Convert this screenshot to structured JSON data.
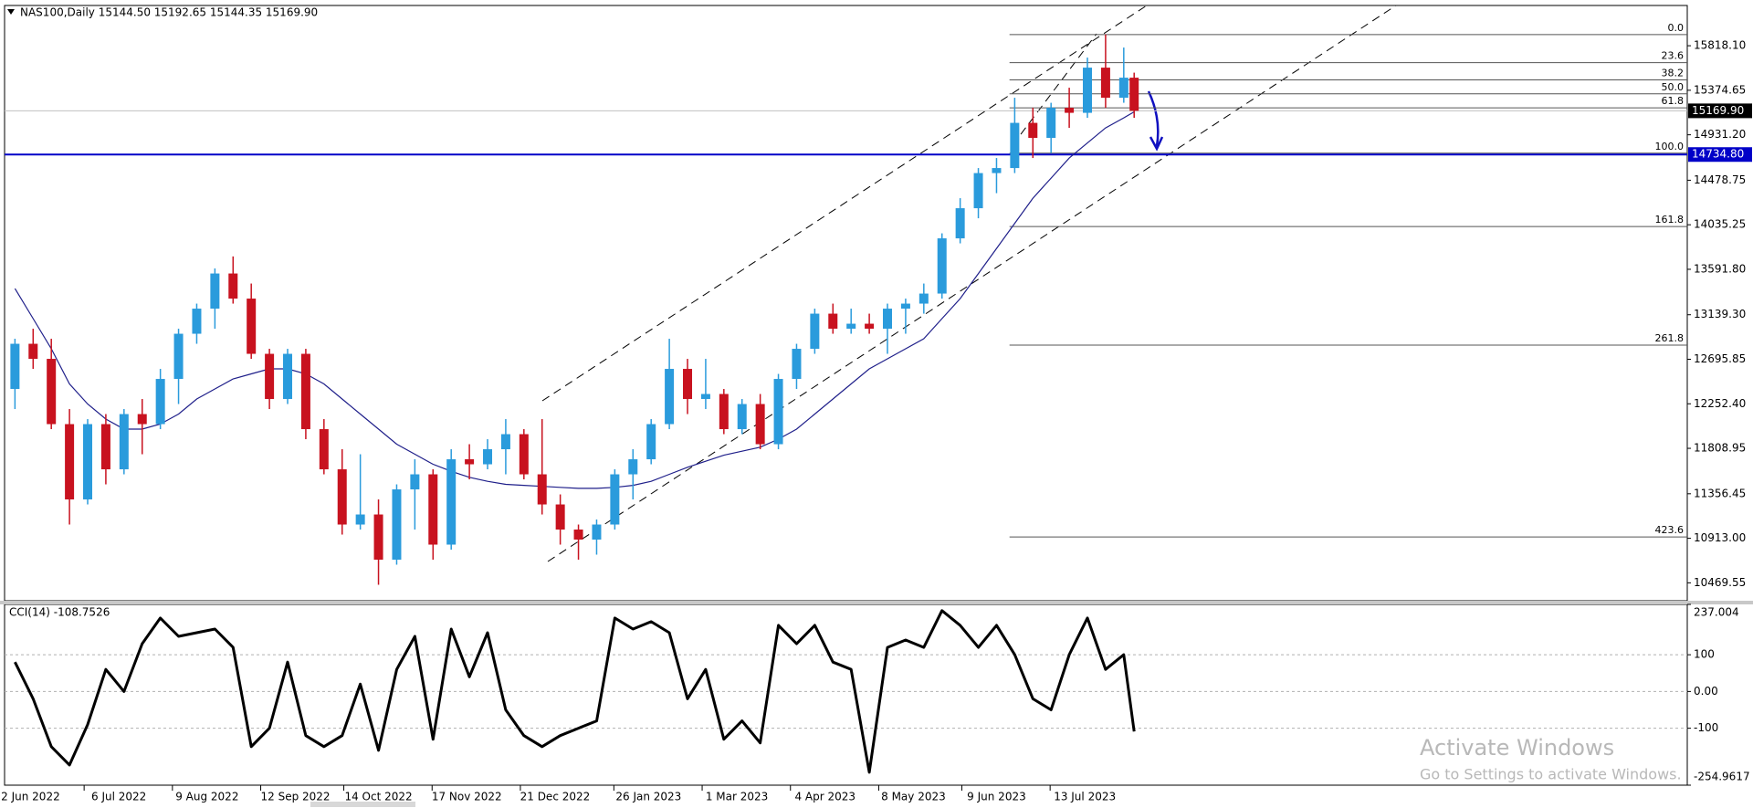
{
  "chart_data": [
    {
      "type": "candlestick",
      "title": "NAS100,Daily  15144.50 15192.65 15144.35 15169.90",
      "x": [
        "2022-05-27",
        "2022-06-03",
        "2022-06-10",
        "2022-06-17",
        "2022-06-24",
        "2022-07-01",
        "2022-07-08",
        "2022-07-15",
        "2022-07-22",
        "2022-07-29",
        "2022-08-05",
        "2022-08-12",
        "2022-08-19",
        "2022-08-26",
        "2022-09-02",
        "2022-09-09",
        "2022-09-16",
        "2022-09-23",
        "2022-09-30",
        "2022-10-07",
        "2022-10-14",
        "2022-10-21",
        "2022-10-28",
        "2022-11-04",
        "2022-11-11",
        "2022-11-18",
        "2022-11-25",
        "2022-12-02",
        "2022-12-09",
        "2022-12-16",
        "2022-12-23",
        "2022-12-30",
        "2023-01-06",
        "2023-01-13",
        "2023-01-20",
        "2023-01-27",
        "2023-02-03",
        "2023-02-10",
        "2023-02-17",
        "2023-02-24",
        "2023-03-03",
        "2023-03-10",
        "2023-03-17",
        "2023-03-24",
        "2023-03-31",
        "2023-04-07",
        "2023-04-14",
        "2023-04-21",
        "2023-04-28",
        "2023-05-05",
        "2023-05-12",
        "2023-05-19",
        "2023-05-26",
        "2023-06-02",
        "2023-06-09",
        "2023-06-16",
        "2023-06-23",
        "2023-06-30",
        "2023-07-07",
        "2023-07-14",
        "2023-07-21",
        "2023-07-28",
        "2023-08-01"
      ],
      "open": [
        12400,
        12850,
        12700,
        12050,
        11300,
        12050,
        11600,
        12150,
        12050,
        12500,
        12950,
        13200,
        13550,
        13300,
        12750,
        12300,
        12750,
        12000,
        11600,
        11050,
        11150,
        10700,
        11400,
        11550,
        10850,
        11700,
        11650,
        11800,
        11950,
        11550,
        11250,
        11000,
        10900,
        11050,
        11550,
        11700,
        12050,
        12600,
        12300,
        12350,
        12000,
        12250,
        11850,
        12500,
        12800,
        13150,
        13000,
        13050,
        13000,
        13200,
        13250,
        13350,
        13900,
        14200,
        14550,
        14600,
        15050,
        14900,
        15200,
        15150,
        15600,
        15300,
        15500
      ],
      "high": [
        12900,
        13000,
        12900,
        12200,
        12100,
        12150,
        12200,
        12300,
        12600,
        13000,
        13250,
        13600,
        13720,
        13450,
        12800,
        12800,
        12800,
        12100,
        11800,
        11750,
        11300,
        11450,
        11700,
        11600,
        11800,
        11850,
        11900,
        12100,
        12000,
        12100,
        11350,
        11050,
        11100,
        11600,
        11800,
        12100,
        12900,
        12700,
        12700,
        12400,
        12300,
        12350,
        12550,
        12850,
        13200,
        13250,
        13200,
        13150,
        13250,
        13300,
        13450,
        13950,
        14300,
        14600,
        14700,
        15300,
        15200,
        15250,
        15400,
        15700,
        15930,
        15800,
        15550
      ],
      "low": [
        12200,
        12600,
        12000,
        11050,
        11250,
        11450,
        11550,
        11750,
        12000,
        12250,
        12850,
        13000,
        13250,
        12700,
        12200,
        12250,
        11900,
        11550,
        10950,
        11000,
        10450,
        10650,
        11000,
        10700,
        10800,
        11500,
        11600,
        11550,
        11500,
        11150,
        10850,
        10700,
        10750,
        11000,
        11300,
        11650,
        12000,
        12150,
        12200,
        11950,
        11950,
        11800,
        11800,
        12400,
        12750,
        12950,
        12950,
        12950,
        12750,
        12950,
        13150,
        13300,
        13850,
        14100,
        14350,
        14550,
        14700,
        14750,
        15000,
        15100,
        15200,
        15250,
        15100
      ],
      "close": [
        12850,
        12700,
        12050,
        11300,
        12050,
        11600,
        12150,
        12050,
        12500,
        12950,
        13200,
        13550,
        13300,
        12750,
        12300,
        12750,
        12000,
        11600,
        11050,
        11150,
        10700,
        11400,
        11550,
        10850,
        11700,
        11650,
        11800,
        11950,
        11550,
        11250,
        11000,
        10900,
        11050,
        11550,
        11700,
        12050,
        12600,
        12300,
        12350,
        12000,
        12250,
        11850,
        12500,
        12800,
        13150,
        13000,
        13050,
        13000,
        13200,
        13250,
        13350,
        13900,
        14200,
        14550,
        14600,
        15050,
        14900,
        15200,
        15150,
        15600,
        15300,
        15500,
        15169.9
      ],
      "up_color": "#2a9bdc",
      "down_color": "#c8121f",
      "ma": {
        "color": "#1f1f8a",
        "values": [
          13400,
          13100,
          12800,
          12450,
          12250,
          12100,
          12000,
          12000,
          12050,
          12150,
          12300,
          12400,
          12500,
          12550,
          12600,
          12600,
          12550,
          12450,
          12300,
          12150,
          12000,
          11850,
          11750,
          11650,
          11580,
          11520,
          11480,
          11450,
          11440,
          11430,
          11420,
          11410,
          11410,
          11420,
          11440,
          11480,
          11550,
          11620,
          11680,
          11740,
          11780,
          11820,
          11900,
          12000,
          12150,
          12300,
          12450,
          12600,
          12700,
          12800,
          12900,
          13100,
          13300,
          13550,
          13800,
          14050,
          14300,
          14500,
          14700,
          14850,
          15000,
          15100,
          15160
        ]
      },
      "xlim": [
        "2022-05-23",
        "2024-03-01"
      ],
      "ylim": [
        10291,
        16219
      ],
      "yticks": [
        {
          "value": 15818.1,
          "label": "15818.10"
        },
        15374.65,
        {
          "value": 14931.2,
          "label": "14931.20"
        },
        14478.75,
        14035.25,
        {
          "value": 13591.8,
          "label": "13591.80"
        },
        {
          "value": 13139.3,
          "label": "13139.30"
        },
        12695.85,
        {
          "value": 12252.4,
          "label": "12252.40"
        },
        11808.95,
        11356.45,
        {
          "value": 10913,
          "label": "10913.00"
        },
        10469.55
      ],
      "price_line": {
        "value": 15169.9,
        "label": "15169.90",
        "color": "#000000"
      },
      "hline": {
        "value": 14734.8,
        "label": "14734.80",
        "color": "#0000c8"
      },
      "fibonacci": {
        "x_start": "2023-06-14",
        "color": "#555555",
        "levels": [
          {
            "label": "0.0",
            "value": 15929
          },
          {
            "label": "23.6",
            "value": 15650
          },
          {
            "label": "38.2",
            "value": 15478
          },
          {
            "label": "50.0",
            "value": 15339
          },
          {
            "label": "61.8",
            "value": 15199
          },
          {
            "label": "100.0",
            "value": 14748
          },
          {
            "label": "161.8",
            "value": 14018
          },
          {
            "label": "261.8",
            "value": 12837
          },
          {
            "label": "423.6",
            "value": 10926
          }
        ]
      }
    },
    {
      "type": "line",
      "title": "CCI(14) -108.7526",
      "x": [
        "2022-05-27",
        "2022-06-03",
        "2022-06-10",
        "2022-06-17",
        "2022-06-24",
        "2022-07-01",
        "2022-07-08",
        "2022-07-15",
        "2022-07-22",
        "2022-07-29",
        "2022-08-05",
        "2022-08-12",
        "2022-08-19",
        "2022-08-26",
        "2022-09-02",
        "2022-09-09",
        "2022-09-16",
        "2022-09-23",
        "2022-09-30",
        "2022-10-07",
        "2022-10-14",
        "2022-10-21",
        "2022-10-28",
        "2022-11-04",
        "2022-11-11",
        "2022-11-18",
        "2022-11-25",
        "2022-12-02",
        "2022-12-09",
        "2022-12-16",
        "2022-12-23",
        "2022-12-30",
        "2023-01-06",
        "2023-01-13",
        "2023-01-20",
        "2023-01-27",
        "2023-02-03",
        "2023-02-10",
        "2023-02-17",
        "2023-02-24",
        "2023-03-03",
        "2023-03-10",
        "2023-03-17",
        "2023-03-24",
        "2023-03-31",
        "2023-04-07",
        "2023-04-14",
        "2023-04-21",
        "2023-04-28",
        "2023-05-05",
        "2023-05-12",
        "2023-05-19",
        "2023-05-26",
        "2023-06-02",
        "2023-06-09",
        "2023-06-16",
        "2023-06-23",
        "2023-06-30",
        "2023-07-07",
        "2023-07-14",
        "2023-07-21",
        "2023-07-28",
        "2023-08-01"
      ],
      "color": "#000000",
      "values": [
        80,
        -20,
        -150,
        -200,
        -90,
        60,
        0,
        130,
        200,
        150,
        160,
        170,
        120,
        -150,
        -100,
        80,
        -120,
        -150,
        -120,
        20,
        -160,
        60,
        150,
        -130,
        170,
        40,
        160,
        -50,
        -120,
        -150,
        -120,
        -100,
        -80,
        200,
        170,
        190,
        160,
        -20,
        60,
        -130,
        -80,
        -140,
        180,
        130,
        180,
        80,
        60,
        -220,
        120,
        140,
        120,
        220,
        180,
        120,
        180,
        100,
        -20,
        -50,
        100,
        200,
        60,
        100,
        -108.7526
      ],
      "xlim": [
        "2022-05-23",
        "2024-03-01"
      ],
      "ylim": [
        -254.9617,
        237.004
      ],
      "yticks": [
        237.004,
        100,
        {
          "value": 0,
          "label": "0.00"
        },
        -100,
        -254.9617
      ],
      "xticks": [
        {
          "value": "2022-06-02",
          "label": "2 Jun 2022"
        },
        {
          "value": "2022-07-06",
          "label": "6 Jul 2022"
        },
        {
          "value": "2022-08-09",
          "label": "9 Aug 2022"
        },
        {
          "value": "2022-09-12",
          "label": "12 Sep 2022"
        },
        {
          "value": "2022-10-14",
          "label": "14 Oct 2022"
        },
        {
          "value": "2022-11-17",
          "label": "17 Nov 2022"
        },
        {
          "value": "2022-12-21",
          "label": "21 Dec 2022"
        },
        {
          "value": "2023-01-26",
          "label": "26 Jan 2023"
        },
        {
          "value": "2023-03-01",
          "label": "1 Mar 2023"
        },
        {
          "value": "2023-04-04",
          "label": "4 Apr 2023"
        },
        {
          "value": "2023-05-08",
          "label": "8 May 2023"
        },
        {
          "value": "2023-06-09",
          "label": "9 Jun 2023"
        },
        {
          "value": "2023-07-13",
          "label": "13 Jul 2023"
        }
      ]
    }
  ],
  "watermark": {
    "line1": "Activate Windows",
    "line2": "Go to Settings to activate Windows."
  }
}
